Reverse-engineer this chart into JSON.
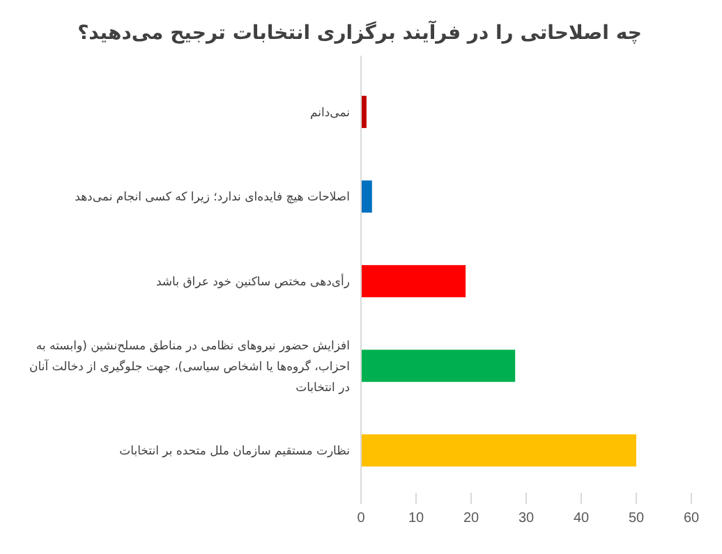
{
  "chart_data": {
    "type": "bar",
    "orientation": "horizontal",
    "title": "چه اصلاحاتی را در فرآیند برگزاری انتخابات ترجیح می‌دهید؟",
    "categories": [
      "نمی‌دانم",
      "اصلاحات هیچ فایده‌ای ندارد؛ زیرا که کسی انجام نمی‌دهد",
      "رأی‌دهی مختص ساکنین خود عراق باشد",
      "افزایش حضور نیروهای نظامی در مناطق مسلح‌نشین (وابسته به احزاب، گروه‌ها یا اشخاص سیاسی)، جهت جلوگیری از دخالت آنان در انتخابات",
      "نظارت مستقیم سازمان ملل متحده بر انتخابات"
    ],
    "values": [
      1,
      2,
      19,
      28,
      50
    ],
    "colors": [
      "#c00000",
      "#0070c0",
      "#ff0000",
      "#00b050",
      "#ffc000"
    ],
    "xlim": [
      0,
      60
    ],
    "xticks": [
      0,
      10,
      20,
      30,
      40,
      50,
      60
    ],
    "grid": false
  }
}
